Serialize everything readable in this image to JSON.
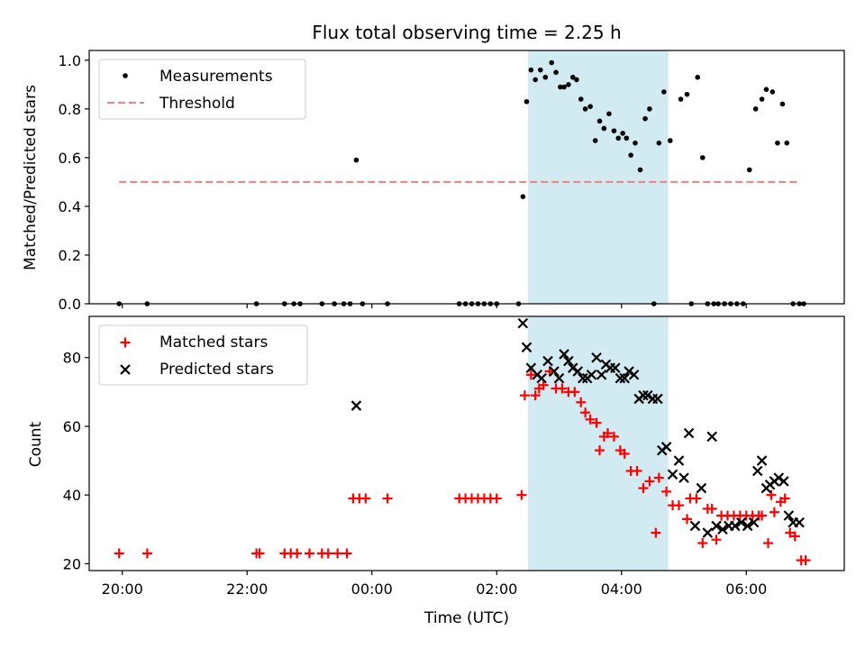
{
  "chart_data": {
    "type": "scatter",
    "title": "Flux total observing time = 2.25 h",
    "xlabel": "Time (UTC)",
    "x_unit": "hour",
    "xlim": [
      -0.53,
      11.57
    ],
    "x_ticks": [
      {
        "value": 0,
        "label": "20:00"
      },
      {
        "value": 2,
        "label": "22:00"
      },
      {
        "value": 4,
        "label": "00:00"
      },
      {
        "value": 6,
        "label": "02:00"
      },
      {
        "value": 8,
        "label": "04:00"
      },
      {
        "value": 10,
        "label": "06:00"
      }
    ],
    "highlight_span": [
      6.5,
      8.75
    ],
    "colors": {
      "highlight": "#add8e6",
      "threshold": "#f08080",
      "matched": "#ff0000",
      "predicted": "#000000",
      "measurement": "#000000"
    },
    "panels": [
      {
        "name": "ratio",
        "ylabel": "Matched/Predicted stars",
        "ylim": [
          0,
          1.04
        ],
        "y_ticks": [
          0.0,
          0.2,
          0.4,
          0.6,
          0.8,
          1.0
        ],
        "y_tick_labels": [
          "0.0",
          "0.2",
          "0.4",
          "0.6",
          "0.8",
          "1.0"
        ],
        "legend": "upper-left",
        "threshold": {
          "name": "Threshold",
          "value": 0.5,
          "x_range": [
            -0.05,
            10.85
          ]
        },
        "series": [
          {
            "name": "Measurements",
            "x": [
              -0.05,
              0.4,
              2.15,
              2.6,
              2.75,
              2.85,
              3.2,
              3.4,
              3.55,
              3.65,
              3.75,
              3.85,
              4.25,
              5.4,
              5.5,
              5.6,
              5.7,
              5.8,
              5.9,
              6.0,
              6.35,
              6.42,
              6.48,
              6.55,
              6.62,
              6.7,
              6.78,
              6.88,
              6.95,
              7.02,
              7.08,
              7.15,
              7.22,
              7.28,
              7.35,
              7.42,
              7.5,
              7.58,
              7.65,
              7.72,
              7.8,
              7.88,
              7.95,
              8.02,
              8.08,
              8.15,
              8.22,
              8.3,
              8.38,
              8.45,
              8.52,
              8.6,
              8.68,
              8.78,
              8.95,
              9.05,
              9.12,
              9.22,
              9.3,
              9.38,
              9.48,
              9.55,
              9.65,
              9.75,
              9.85,
              9.95,
              10.05,
              10.15,
              10.25,
              10.32,
              10.42,
              10.5,
              10.58,
              10.65,
              10.75,
              10.85,
              10.92
            ],
            "y": [
              0.0,
              0.0,
              0.0,
              0.0,
              0.0,
              0.0,
              0.0,
              0.0,
              0.0,
              0.0,
              0.59,
              0.0,
              0.0,
              0.0,
              0.0,
              0.0,
              0.0,
              0.0,
              0.0,
              0.0,
              0.0,
              0.44,
              0.83,
              0.96,
              0.92,
              0.96,
              0.93,
              0.99,
              0.95,
              0.89,
              0.89,
              0.9,
              0.93,
              0.92,
              0.84,
              0.8,
              0.81,
              0.67,
              0.75,
              0.72,
              0.78,
              0.71,
              0.68,
              0.7,
              0.68,
              0.61,
              0.66,
              0.55,
              0.76,
              0.8,
              0.0,
              0.66,
              0.87,
              0.67,
              0.84,
              0.86,
              0.0,
              0.93,
              0.6,
              0.0,
              0.0,
              0.0,
              0.0,
              0.0,
              0.0,
              0.0,
              0.55,
              0.8,
              0.84,
              0.88,
              0.87,
              0.66,
              0.82,
              0.66,
              0.0,
              0.0,
              0.0
            ]
          }
        ]
      },
      {
        "name": "counts",
        "ylabel": "Count",
        "ylim": [
          18,
          92
        ],
        "y_ticks": [
          20,
          40,
          60,
          80
        ],
        "y_tick_labels": [
          "20",
          "40",
          "60",
          "80"
        ],
        "legend": "upper-left",
        "series": [
          {
            "name": "Matched stars",
            "marker": "plus",
            "x": [
              -0.05,
              0.4,
              2.15,
              2.2,
              2.6,
              2.7,
              2.8,
              3.0,
              3.2,
              3.3,
              3.45,
              3.6,
              3.7,
              3.8,
              3.9,
              4.25,
              5.4,
              5.5,
              5.6,
              5.7,
              5.8,
              5.9,
              6.0,
              6.4,
              6.45,
              6.55,
              6.62,
              6.68,
              6.75,
              6.85,
              6.95,
              7.05,
              7.15,
              7.25,
              7.35,
              7.42,
              7.5,
              7.6,
              7.65,
              7.72,
              7.78,
              7.88,
              7.98,
              8.05,
              8.15,
              8.25,
              8.35,
              8.45,
              8.55,
              8.6,
              8.72,
              8.82,
              8.92,
              9.05,
              9.1,
              9.2,
              9.3,
              9.38,
              9.45,
              9.52,
              9.6,
              9.7,
              9.8,
              9.9,
              10.0,
              10.1,
              10.2,
              10.25,
              10.35,
              10.4,
              10.45,
              10.55,
              10.62,
              10.7,
              10.78,
              10.88,
              10.95
            ],
            "y": [
              23,
              23,
              23,
              23,
              23,
              23,
              23,
              23,
              23,
              23,
              23,
              23,
              39,
              39,
              39,
              39,
              39,
              39,
              39,
              39,
              39,
              39,
              39,
              40,
              69,
              75,
              69,
              71,
              72,
              76,
              71,
              71,
              70,
              70,
              67,
              64,
              62,
              61,
              53,
              57,
              58,
              57,
              53,
              52,
              47,
              47,
              42,
              44,
              29,
              45,
              41,
              37,
              37,
              33,
              39,
              39,
              26,
              36,
              36,
              27,
              34,
              34,
              34,
              34,
              34,
              34,
              34,
              34,
              26,
              40,
              35,
              38,
              39,
              29,
              28,
              21,
              21
            ]
          },
          {
            "name": "Predicted stars",
            "marker": "x",
            "x": [
              3.75,
              6.42,
              6.48,
              6.55,
              6.65,
              6.72,
              6.82,
              6.92,
              7.0,
              7.08,
              7.15,
              7.22,
              7.3,
              7.38,
              7.45,
              7.52,
              7.6,
              7.68,
              7.75,
              7.82,
              7.9,
              7.98,
              8.05,
              8.12,
              8.2,
              8.28,
              8.35,
              8.42,
              8.5,
              8.58,
              8.65,
              8.72,
              8.82,
              8.92,
              9.0,
              9.08,
              9.18,
              9.28,
              9.38,
              9.45,
              9.52,
              9.62,
              9.72,
              9.82,
              9.92,
              10.02,
              10.12,
              10.18,
              10.25,
              10.32,
              10.38,
              10.45,
              10.52,
              10.6,
              10.68,
              10.75,
              10.85
            ],
            "y": [
              66,
              90,
              83,
              77,
              75,
              74,
              79,
              76,
              74,
              81,
              79,
              77,
              76,
              74,
              74,
              75,
              80,
              75,
              78,
              77,
              77,
              74,
              74,
              76,
              75,
              68,
              69,
              69,
              68,
              68,
              53,
              54,
              46,
              50,
              45,
              58,
              31,
              42,
              29,
              57,
              31,
              30,
              31,
              31,
              32,
              31,
              32,
              47,
              50,
              42,
              43,
              44,
              45,
              44,
              34,
              32,
              32
            ]
          }
        ]
      }
    ]
  }
}
